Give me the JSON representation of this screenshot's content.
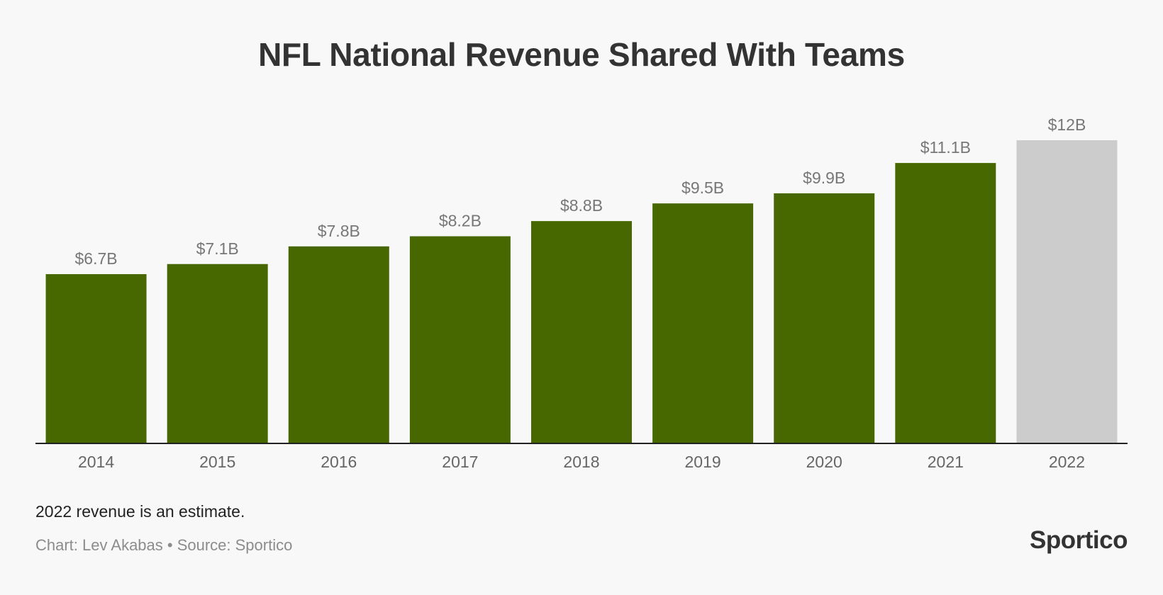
{
  "chart_data": {
    "type": "bar",
    "title": "NFL National Revenue Shared With Teams",
    "xlabel": "",
    "ylabel": "",
    "categories": [
      "2014",
      "2015",
      "2016",
      "2017",
      "2018",
      "2019",
      "2020",
      "2021",
      "2022"
    ],
    "values": [
      6.7,
      7.1,
      7.8,
      8.2,
      8.8,
      9.5,
      9.9,
      11.1,
      12.0
    ],
    "value_labels": [
      "$6.7B",
      "$7.1B",
      "$7.8B",
      "$8.2B",
      "$8.8B",
      "$9.5B",
      "$9.9B",
      "$11.1B",
      "$12B"
    ],
    "estimate": [
      false,
      false,
      false,
      false,
      false,
      false,
      false,
      false,
      true
    ],
    "ylim": [
      0,
      12
    ],
    "grid": false,
    "colors": {
      "actual": "#476800",
      "estimate": "#cccccc",
      "baseline": "#222222"
    }
  },
  "footer": {
    "note": "2022 revenue is an estimate.",
    "credit": "Chart: Lev Akabas • Source: Sportico",
    "logo_text": "Sportico"
  }
}
